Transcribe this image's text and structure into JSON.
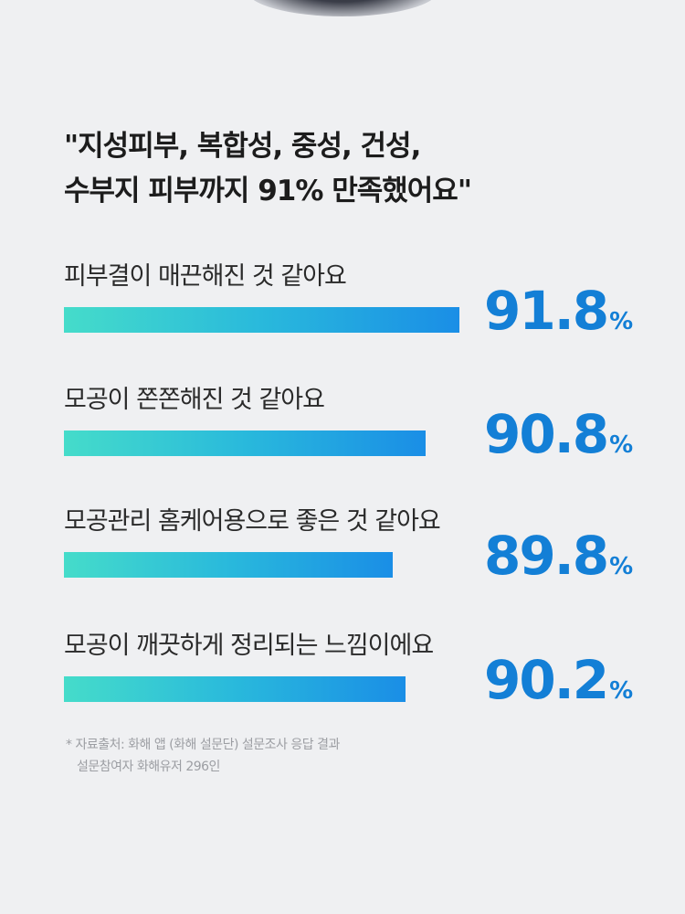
{
  "headline": {
    "line1": "\"지성피부, 복합성, 중성, 건성,",
    "line2": "수부지 피부까지  91% 만족했어요\""
  },
  "chart_data": {
    "type": "bar",
    "orientation": "horizontal",
    "categories": [
      "피부결이 매끈해진 것 같아요",
      "모공이 쫀쫀해진 것 같아요",
      "모공관리 홈케어용으로 좋은 것 같아요",
      "모공이 깨끗하게 정리되는 느낌이에요"
    ],
    "values": [
      91.8,
      90.8,
      89.8,
      90.2
    ],
    "value_labels": [
      "91.8",
      "90.8",
      "89.8",
      "90.2"
    ],
    "unit": "%",
    "colors": {
      "bar_start": "#45dcca",
      "bar_end": "#1a8ee6",
      "value_text": "#137fd6"
    }
  },
  "footnote": {
    "line1": "* 자료출처: 화해 앱 (화해 설문단) 설문조사 응답 결과",
    "line2": "설문참여자 화해유저 296인"
  }
}
